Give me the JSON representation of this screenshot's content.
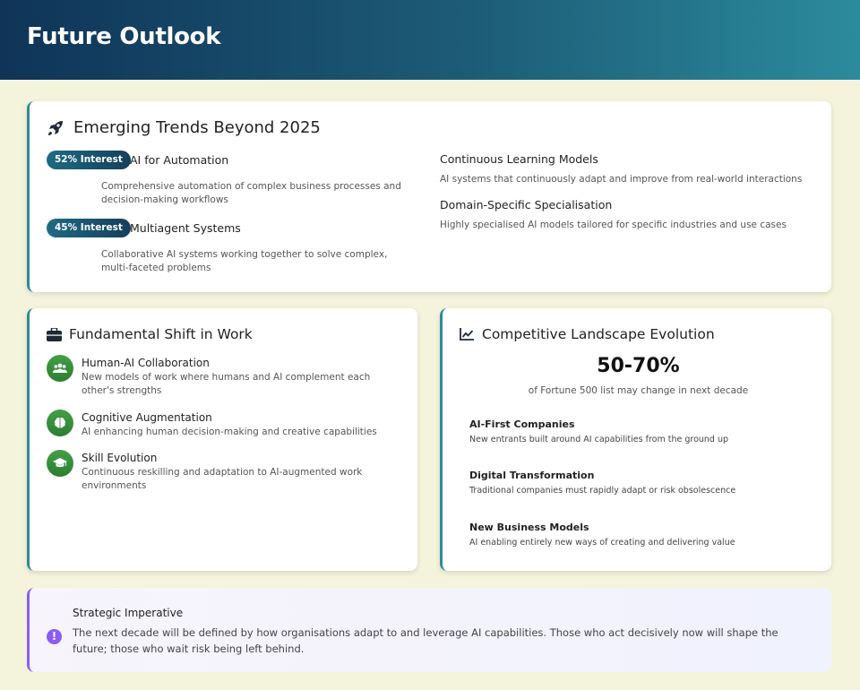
{
  "header": {
    "title": "Future Outlook"
  },
  "trends": {
    "title": "Emerging Trends Beyond 2025",
    "icon": "rocket-icon",
    "left_items": [
      {
        "badge": "52% Interest",
        "name": "AI for Automation",
        "desc": "Comprehensive automation of complex business processes and decision-making workflows"
      },
      {
        "badge": "45% Interest",
        "name": "Multiagent Systems",
        "desc": "Collaborative AI systems working together to solve complex, multi-faceted problems"
      }
    ],
    "right_items": [
      {
        "name": "Continuous Learning Models",
        "desc": "AI systems that continuously adapt and improve from real-world interactions"
      },
      {
        "name": "Domain-Specific Specialisation",
        "desc": "Highly specialised AI models tailored for specific industries and use cases"
      }
    ]
  },
  "shift": {
    "title": "Fundamental Shift in Work",
    "icon": "briefcase-icon",
    "items": [
      {
        "icon": "users-icon",
        "title": "Human-AI Collaboration",
        "desc": "New models of work where humans and AI complement each other's strengths"
      },
      {
        "icon": "brain-icon",
        "title": "Cognitive Augmentation",
        "desc": "AI enhancing human decision-making and creative capabilities"
      },
      {
        "icon": "graduation-cap-icon",
        "title": "Skill Evolution",
        "desc": "Continuous reskilling and adaptation to AI-augmented work environments"
      }
    ]
  },
  "competitive": {
    "title": "Competitive Landscape Evolution",
    "icon": "line-chart-icon",
    "stat": "50-70%",
    "stat_label": "of Fortune 500 list may change in next decade",
    "items": [
      {
        "title": "AI-First Companies",
        "desc": "New entrants built around AI capabilities from the ground up"
      },
      {
        "title": "Digital Transformation",
        "desc": "Traditional companies must rapidly adapt or risk obsolescence"
      },
      {
        "title": "New Business Models",
        "desc": "AI enabling entirely new ways of creating and delivering value"
      }
    ]
  },
  "strategic": {
    "icon": "exclamation-circle-icon",
    "title": "Strategic Imperative",
    "text": "The next decade will be defined by how organisations adapt to and leverage AI capabilities. Those who act decisively now will shape the future; those who wait risk being left behind."
  },
  "colors": {
    "header_start": "#0f3457",
    "header_end": "#2b8b9c",
    "accent": "#2f8a99",
    "green": "#2e7d32",
    "purple": "#8b5cf6",
    "background": "#f4f3dc"
  }
}
